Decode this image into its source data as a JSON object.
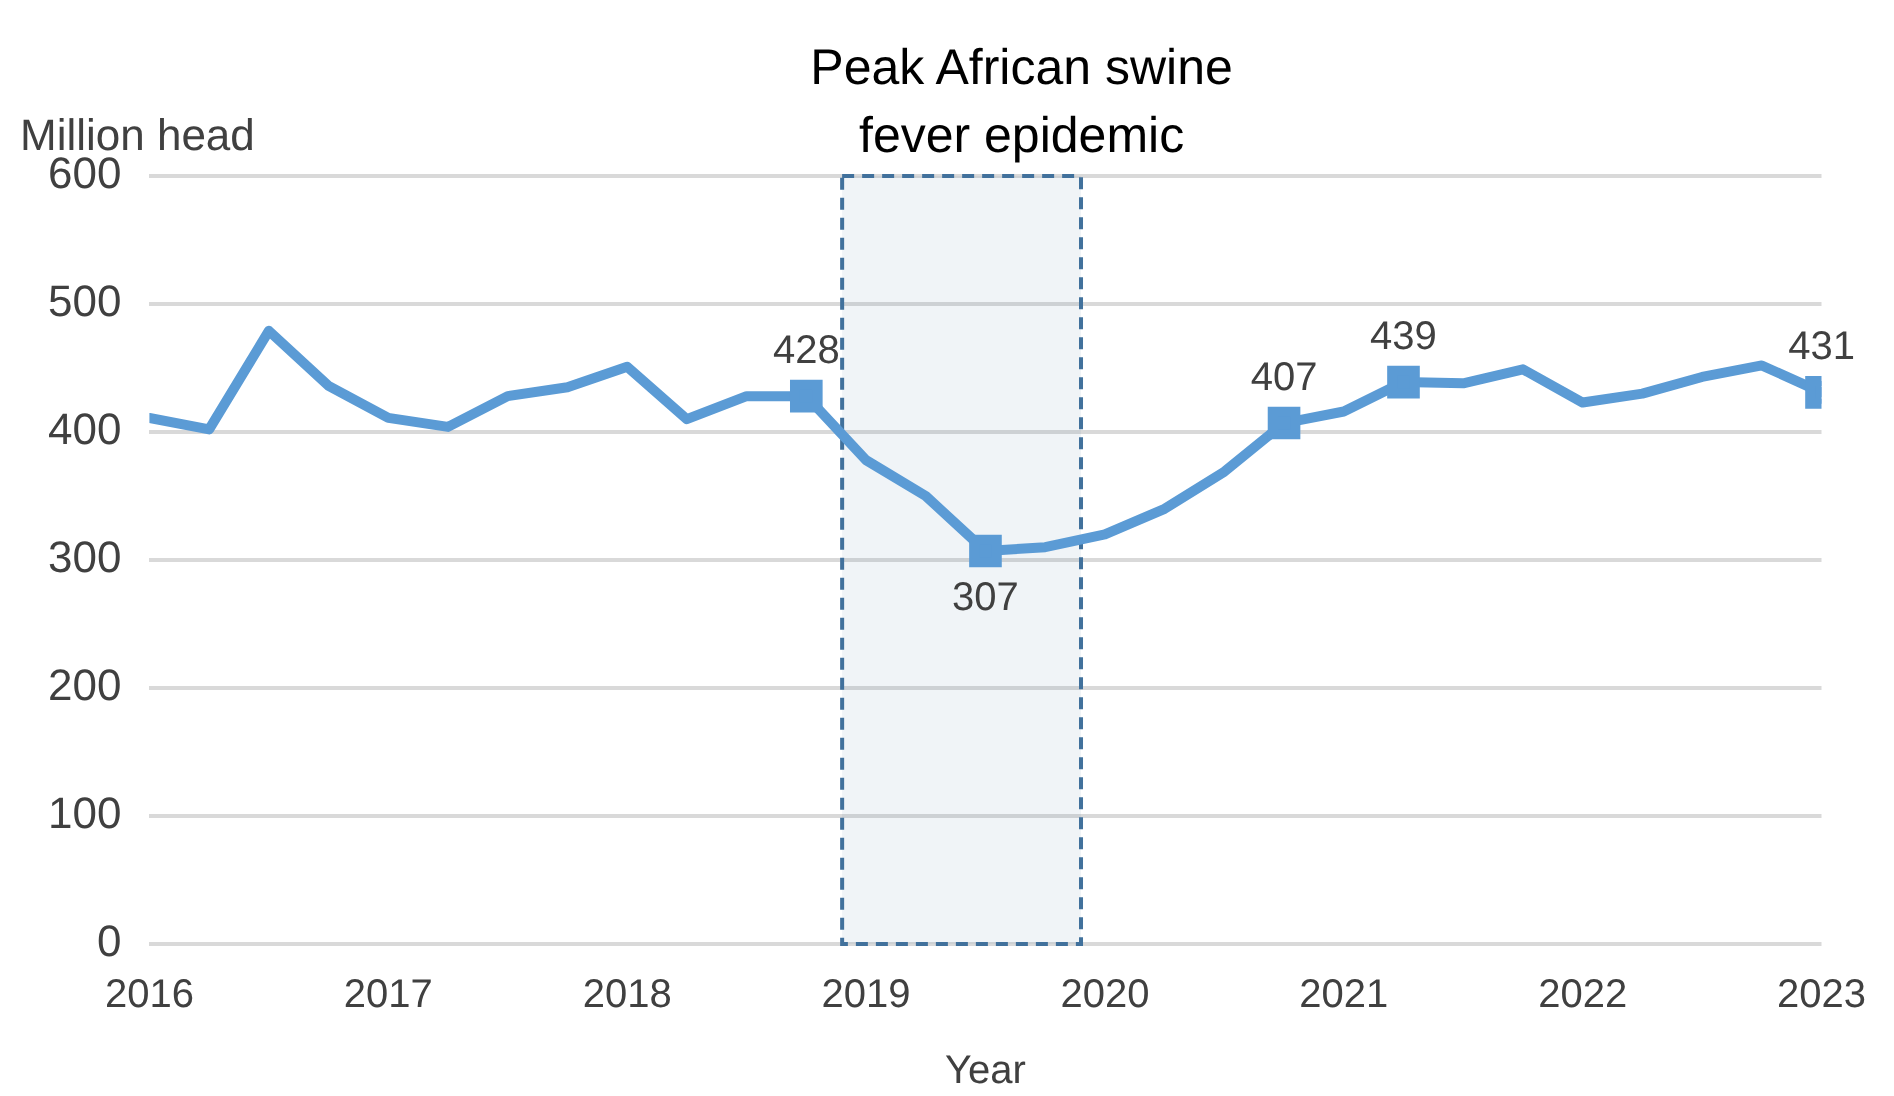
{
  "chart_data": {
    "type": "line",
    "xlabel": "Year",
    "ylabel": "Million head",
    "x": [
      2016,
      2016.25,
      2016.5,
      2016.75,
      2017,
      2017.25,
      2017.5,
      2017.75,
      2018,
      2018.25,
      2018.5,
      2018.75,
      2019,
      2019.25,
      2019.5,
      2019.75,
      2020,
      2020.25,
      2020.5,
      2020.75,
      2021,
      2021.25,
      2021.5,
      2021.75,
      2022,
      2022.25,
      2022.5,
      2022.75,
      2023
    ],
    "series": [
      {
        "color": "#5b9bd5",
        "values": [
          411,
          402,
          479,
          436,
          411,
          404,
          428,
          435,
          451,
          410,
          428,
          428,
          378,
          350,
          307,
          310,
          320,
          340,
          369,
          407,
          416,
          439,
          438,
          449,
          423,
          430,
          443,
          452,
          431
        ],
        "value_labels": [
          null,
          null,
          null,
          null,
          null,
          null,
          null,
          null,
          null,
          null,
          null,
          "428",
          null,
          null,
          "307",
          null,
          null,
          null,
          null,
          "407",
          null,
          "439",
          null,
          null,
          null,
          null,
          null,
          null,
          "431"
        ]
      }
    ],
    "xlim": [
      2016,
      2023
    ],
    "xticks": [
      2016,
      2017,
      2018,
      2019,
      2020,
      2021,
      2022,
      2023
    ],
    "ylim": [
      0,
      600
    ],
    "yticks": [
      0,
      100,
      200,
      300,
      400,
      500,
      600
    ],
    "grid": "y",
    "legend": false,
    "line_style": "solid",
    "bands": [
      {
        "axis": "x",
        "from": 2018.9,
        "to": 2019.9,
        "label": "Peak African swine fever epidemic",
        "color": "#41719c"
      }
    ]
  }
}
